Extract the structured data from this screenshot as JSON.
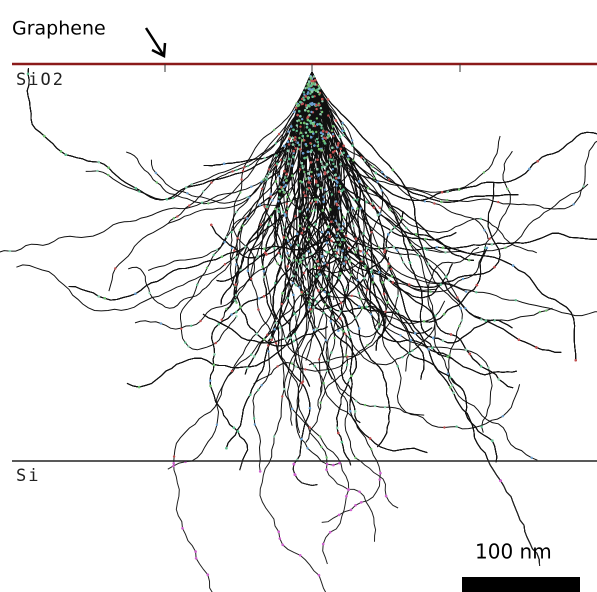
{
  "labels": {
    "graphene": "Graphene",
    "sio2": "SiO2",
    "si": "Si",
    "scale_bar": "100 nm"
  }
}
